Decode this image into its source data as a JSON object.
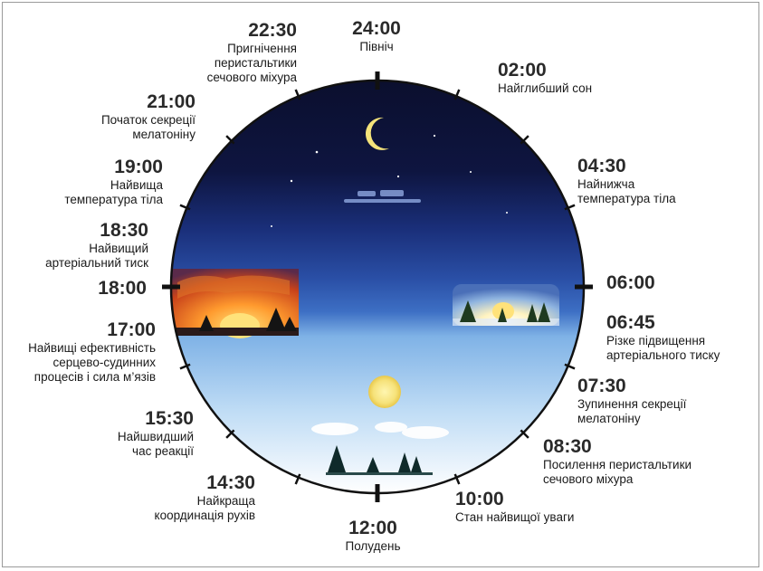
{
  "labels": [
    {
      "time": "24:00",
      "desc": [
        "Північ"
      ]
    },
    {
      "time": "02:00",
      "desc": [
        "Найглибший сон"
      ]
    },
    {
      "time": "04:30",
      "desc": [
        "Найнижча",
        "температура тіла"
      ]
    },
    {
      "time": "06:00",
      "desc": []
    },
    {
      "time": "06:45",
      "desc": [
        "Різке підвищення",
        "артеріального тиску"
      ]
    },
    {
      "time": "07:30",
      "desc": [
        "Зупинення секреції",
        "мелатоніну"
      ]
    },
    {
      "time": "08:30",
      "desc": [
        "Посилення перистальтики",
        "сечового міхура"
      ]
    },
    {
      "time": "10:00",
      "desc": [
        "Стан найвищої уваги"
      ]
    },
    {
      "time": "12:00",
      "desc": [
        "Полудень"
      ]
    },
    {
      "time": "14:30",
      "desc": [
        "Найкраща",
        "координація рухів"
      ]
    },
    {
      "time": "15:30",
      "desc": [
        "Найшвидший",
        "час реакції"
      ]
    },
    {
      "time": "17:00",
      "desc": [
        "Найвищі ефективність",
        "серцево-судинних",
        "процесів і сила м’язів"
      ]
    },
    {
      "time": "18:00",
      "desc": []
    },
    {
      "time": "18:30",
      "desc": [
        "Найвищий",
        "артеріальний тиск"
      ]
    },
    {
      "time": "19:00",
      "desc": [
        "Найвища",
        "температура тіла"
      ]
    },
    {
      "time": "21:00",
      "desc": [
        "Початок секреції",
        "мелатоніну"
      ]
    },
    {
      "time": "22:30",
      "desc": [
        "Пригнічення",
        "перистальтики",
        "сечового міхура"
      ]
    }
  ],
  "colors": {
    "night": "#0b0f2e",
    "night_mid": "#1a2f7a",
    "dusk": "#3d6fc4",
    "day_top": "#7fb2e6",
    "day_bottom": "#ffffff",
    "rim": "#111111",
    "sun": "#f6e27a"
  }
}
